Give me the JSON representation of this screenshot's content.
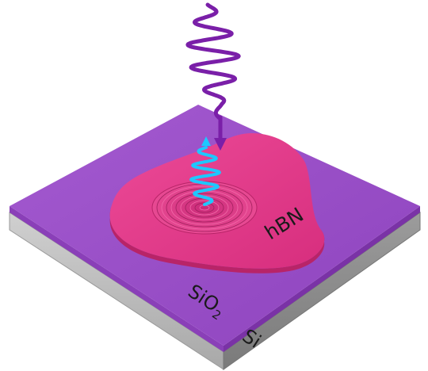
{
  "labels": {
    "flake": "hBN",
    "oxide_main": "SiO",
    "oxide_sub": "2",
    "substrate": "Si"
  },
  "colors": {
    "oxide_top": "#9a4fc8",
    "oxide_edge": "#8a3fb8",
    "silicon_left": "#bdbdbd",
    "silicon_right": "#8e8e8e",
    "flake": "#e23b8a",
    "flake_edge": "#b82468",
    "incident_wave": "#7a1fa8",
    "emitted_wave": "#1ec8ff"
  },
  "icons": {
    "incident": "incident-light-wave-icon",
    "emitted": "emitted-light-wave-icon",
    "polariton": "concentric-polariton-rings-icon"
  }
}
